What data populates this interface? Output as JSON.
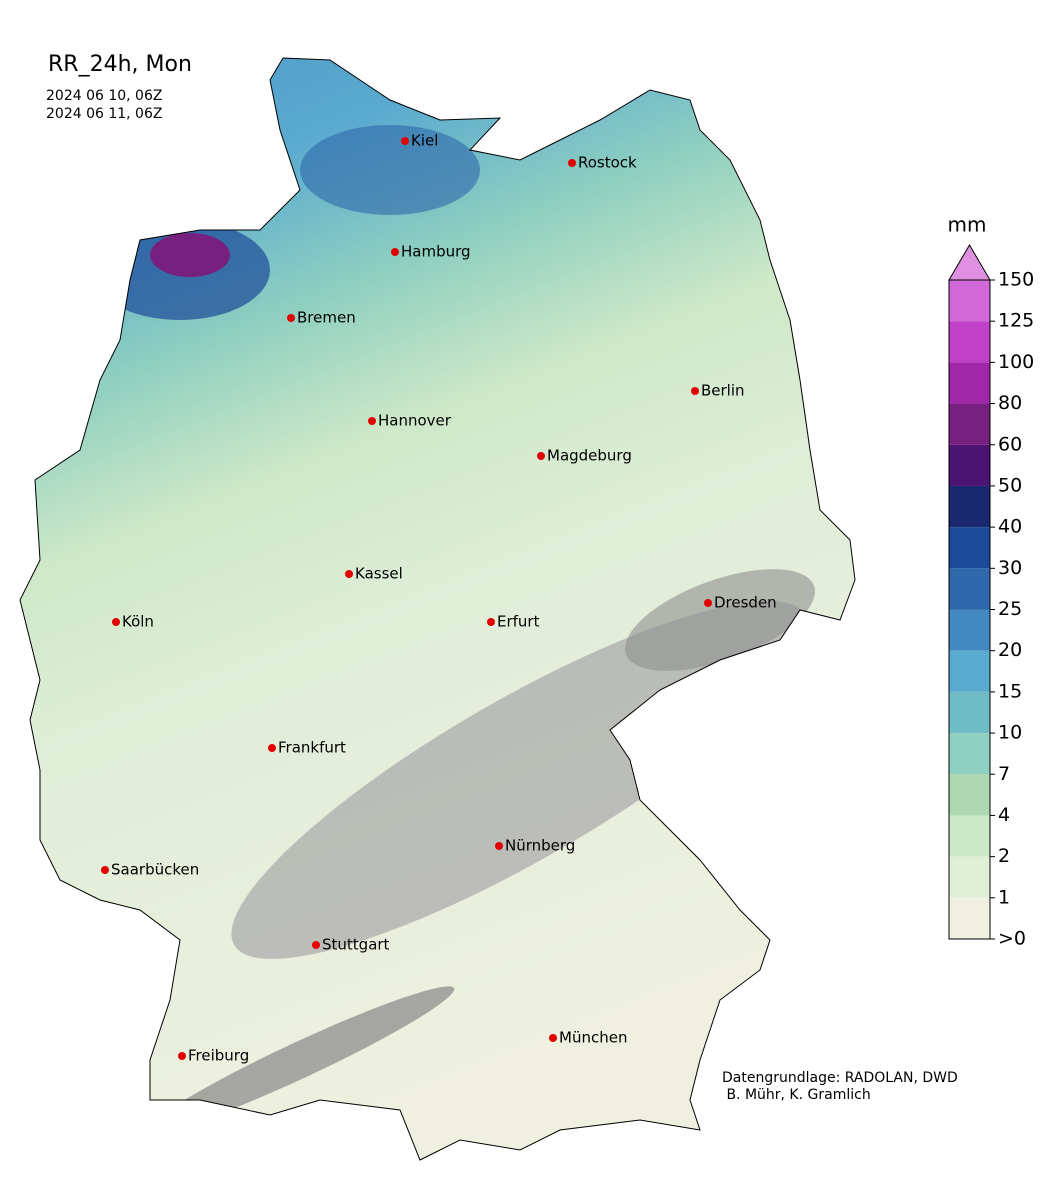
{
  "title": "RR_24h, Mon",
  "dates": [
    "2024 06 10, 06Z",
    "2024 06 11, 06Z"
  ],
  "cities": [
    "Kiel",
    "Rostock",
    "Hamburg",
    "Bremen",
    "Berlin",
    "Hannover",
    "Magdeburg",
    "Kassel",
    "Dresden",
    "Köln",
    "Erfurt",
    "Frankfurt",
    "Nürnberg",
    "Saarbücken",
    "Stuttgart",
    "München",
    "Freiburg"
  ],
  "colorbar": {
    "unit": "mm",
    "ticks": [
      {
        "value": 0,
        "label": ">0"
      },
      1,
      2,
      4,
      7,
      10,
      15,
      20,
      25,
      30,
      40,
      50,
      60,
      80,
      100,
      125,
      150
    ],
    "colors": [
      "#f0f0e0",
      "#e0eed8",
      "#cde8c8",
      "#aed8b4",
      "#90d0c0",
      "#70bcc4",
      "#5aaad0",
      "#4488c0",
      "#2e68aa",
      "#1c4a98",
      "#1a2870",
      "#4a1470",
      "#782080",
      "#a028a8",
      "#c040c8",
      "#d068d8"
    ],
    "extend_color": "#e090e0"
  },
  "credits": [
    "Datengrundlage: RADOLAN, DWD",
    " B. Mühr, K. Gramlich"
  ]
}
